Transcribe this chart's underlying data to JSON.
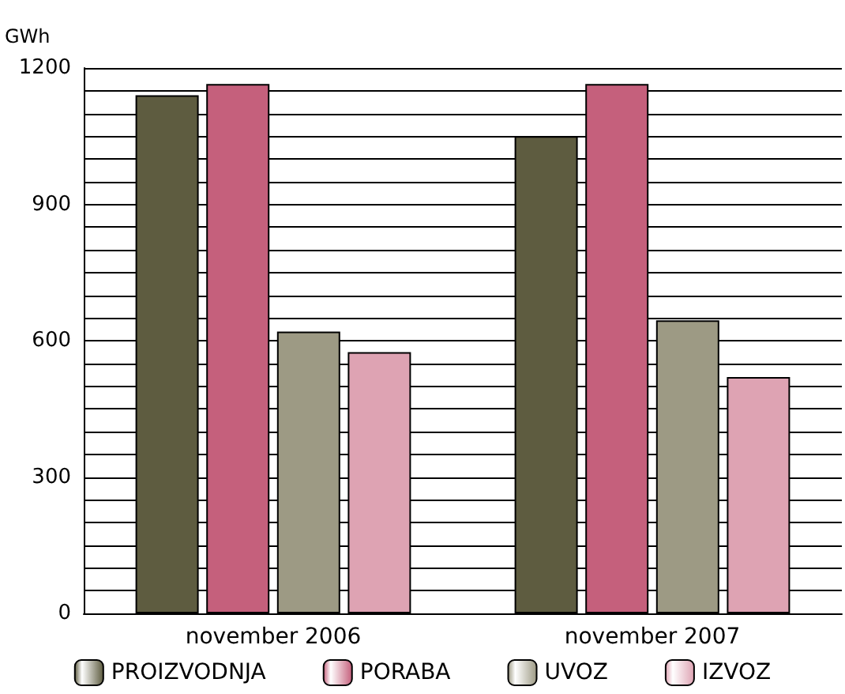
{
  "chart_data": {
    "type": "bar",
    "ylabel": "GWh",
    "categories": [
      "november 2006",
      "november 2007"
    ],
    "series": [
      {
        "name": "PROIZVODNJA",
        "color": "#5e5c40",
        "values": [
          1140,
          1050
        ]
      },
      {
        "name": "PORABA",
        "color": "#c5607c",
        "values": [
          1165,
          1165
        ]
      },
      {
        "name": "UVOZ",
        "color": "#9d9a84",
        "values": [
          620,
          645
        ]
      },
      {
        "name": "IZVOZ",
        "color": "#dea3b3",
        "values": [
          575,
          520
        ]
      }
    ],
    "ylim": [
      0,
      1200
    ],
    "yticks": [
      0,
      {
        "value": 50,
        "label": null
      },
      {
        "value": 100,
        "label": null
      },
      {
        "value": 150,
        "label": null
      },
      {
        "value": 200,
        "label": null
      },
      {
        "value": 250,
        "label": null
      },
      300,
      {
        "value": 350,
        "label": null
      },
      {
        "value": 400,
        "label": null
      },
      {
        "value": 450,
        "label": null
      },
      {
        "value": 500,
        "label": null
      },
      {
        "value": 550,
        "label": null
      },
      600,
      {
        "value": 650,
        "label": null
      },
      {
        "value": 700,
        "label": null
      },
      {
        "value": 750,
        "label": null
      },
      {
        "value": 800,
        "label": null
      },
      {
        "value": 850,
        "label": null
      },
      900,
      {
        "value": 950,
        "label": null
      },
      {
        "value": 1000,
        "label": null
      },
      {
        "value": 1050,
        "label": null
      },
      {
        "value": 1100,
        "label": null
      },
      {
        "value": 1150,
        "label": null
      },
      1200
    ],
    "grid": "y",
    "legend": "bottom"
  }
}
